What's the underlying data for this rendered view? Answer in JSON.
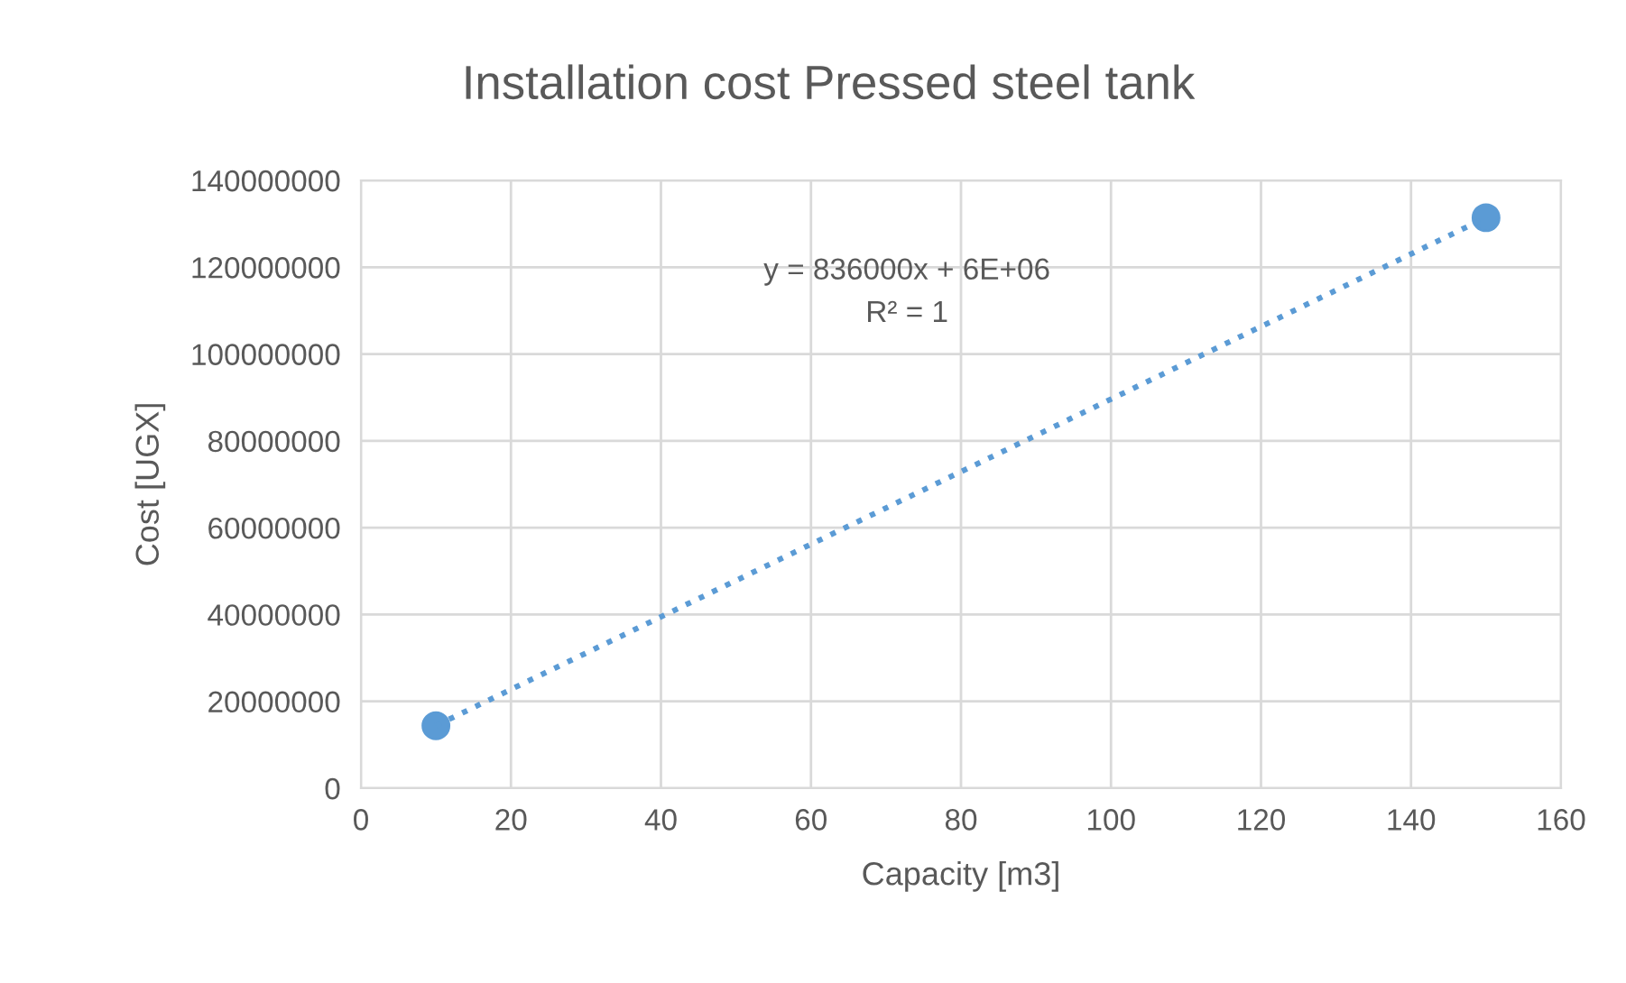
{
  "chart_data": {
    "type": "scatter",
    "title": "Installation cost Pressed steel tank",
    "xlabel": "Capacity [m3]",
    "ylabel": "Cost [UGX]",
    "series": [
      {
        "type": "scatter",
        "color": "#5b9bd5",
        "values": [
          14400000,
          131400000
        ],
        "marker": "circle"
      },
      {
        "type": "line",
        "color": "#5b9bd5",
        "values": [
          14400000,
          131400000
        ],
        "line_style": "dotted",
        "marker": "none"
      }
    ],
    "x": [
      10,
      150
    ],
    "annotations": [
      "y = 836000x + 6E+06",
      "R² = 1"
    ],
    "xlim": [
      0,
      160
    ],
    "xticks": [
      0,
      20,
      40,
      60,
      80,
      100,
      120,
      140,
      160
    ],
    "ylim": [
      0,
      140000000
    ],
    "yticks": [
      0,
      20000000,
      40000000,
      60000000,
      80000000,
      100000000,
      120000000,
      140000000
    ],
    "grid": true,
    "legend": false
  }
}
